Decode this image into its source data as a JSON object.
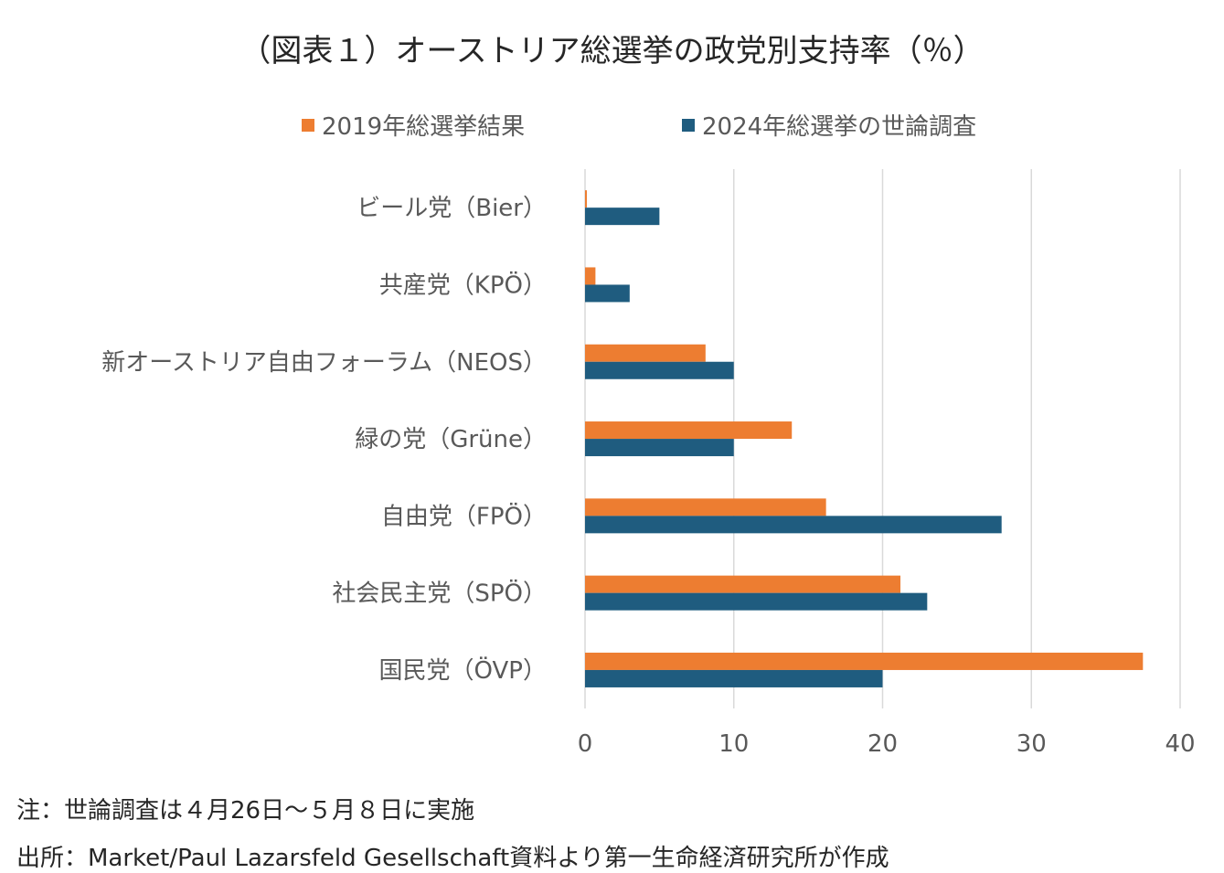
{
  "title": "（図表１）オーストリア総選挙の政党別支持率（％）",
  "legend": {
    "series1": "2019年総選挙結果",
    "series2": "2024年総選挙の世論調査"
  },
  "colors": {
    "series1": "#ED7D31",
    "series2": "#1F5C7F",
    "grid": "#D9D9D9"
  },
  "chart_data": {
    "type": "bar",
    "orientation": "horizontal",
    "title": "（図表１）オーストリア総選挙の政党別支持率（％）",
    "categories": [
      "ビール党（Bier）",
      "共産党（KPÖ）",
      "新オーストリア自由フォーラム（NEOS）",
      "緑の党（Grüne）",
      "自由党（FPÖ）",
      "社会民主党（SPÖ）",
      "国民党（ÖVP）"
    ],
    "series": [
      {
        "name": "2019年総選挙結果",
        "values": [
          0.1,
          0.7,
          8.1,
          13.9,
          16.2,
          21.2,
          37.5
        ]
      },
      {
        "name": "2024年総選挙の世論調査",
        "values": [
          5,
          3,
          10,
          10,
          28,
          23,
          20
        ]
      }
    ],
    "xlim": [
      0,
      40
    ],
    "xticks": [
      0,
      10,
      20,
      30,
      40
    ],
    "grid": true,
    "legend_position": "top"
  },
  "notes": {
    "note1": "注：世論調査は４月26日～５月８日に実施",
    "note2": "出所：Market/Paul Lazarsfeld Gesellschaft資料より第一生命経済研究所が作成"
  }
}
